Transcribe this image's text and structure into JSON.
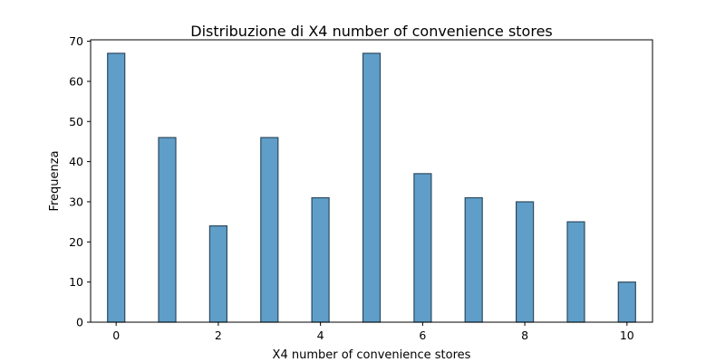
{
  "chart_data": {
    "type": "bar",
    "title": "Distribuzione di X4 number of convenience stores",
    "xlabel": "X4 number of convenience stores",
    "ylabel": "Frequenza",
    "x": [
      0,
      1,
      2,
      3,
      4,
      5,
      6,
      7,
      8,
      9,
      10
    ],
    "values": [
      67,
      46,
      24,
      46,
      31,
      67,
      37,
      31,
      30,
      25,
      10
    ],
    "xlim": [
      -0.5,
      10.5
    ],
    "ylim": [
      0,
      70.35
    ],
    "xticks": [
      0,
      2,
      4,
      6,
      8,
      10
    ],
    "yticks": [
      0,
      10,
      20,
      30,
      40,
      50,
      60,
      70
    ],
    "grid": false,
    "bar_color": "#5f9ec9",
    "edge_color": "#2e4a5f"
  }
}
